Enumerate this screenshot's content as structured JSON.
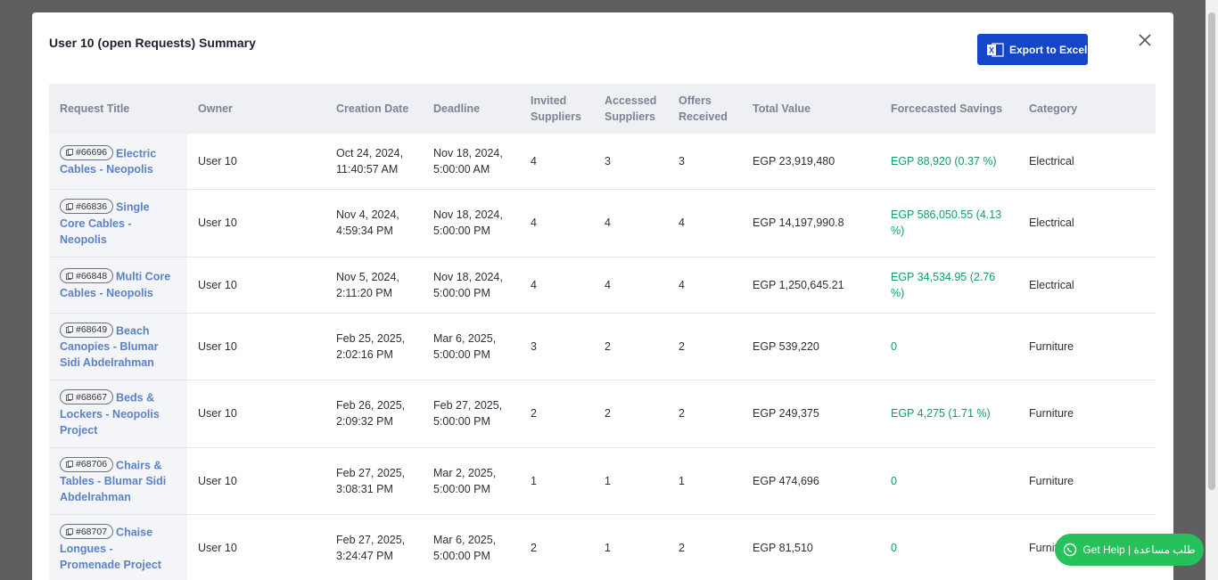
{
  "modal": {
    "title": "User 10 (open Requests) Summary",
    "export_button": "Export to Excel"
  },
  "table": {
    "headers": [
      "Request Title",
      "Owner",
      "Creation Date",
      "Deadline",
      "Invited Suppliers",
      "Accessed Suppliers",
      "Offers Received",
      "Total Value",
      "Forcecasted Savings",
      "Category"
    ],
    "rows": [
      {
        "id": "#66696",
        "title": "Electric Cables - Neopolis",
        "owner": "User 10",
        "created": "Oct 24, 2024, 11:40:57 AM",
        "deadline": "Nov 18, 2024, 5:00:00 AM",
        "invited": 4,
        "accessed": 3,
        "offers": 3,
        "total_value": "EGP 23,919,480",
        "savings": "EGP 88,920 (0.37 %)",
        "category": "Electrical"
      },
      {
        "id": "#66836",
        "title": "Single Core Cables - Neopolis",
        "owner": "User 10",
        "created": "Nov 4, 2024, 4:59:34 PM",
        "deadline": "Nov 18, 2024, 5:00:00 PM",
        "invited": 4,
        "accessed": 4,
        "offers": 4,
        "total_value": "EGP 14,197,990.8",
        "savings": "EGP 586,050.55 (4.13 %)",
        "category": "Electrical"
      },
      {
        "id": "#66848",
        "title": "Multi Core Cables - Neopolis",
        "owner": "User 10",
        "created": "Nov 5, 2024, 2:11:20 PM",
        "deadline": "Nov 18, 2024, 5:00:00 PM",
        "invited": 4,
        "accessed": 4,
        "offers": 4,
        "total_value": "EGP 1,250,645.21",
        "savings": "EGP 34,534.95 (2.76 %)",
        "category": "Electrical"
      },
      {
        "id": "#68649",
        "title": "Beach Canopies - Blumar Sidi Abdelrahman",
        "owner": "User 10",
        "created": "Feb 25, 2025, 2:02:16 PM",
        "deadline": "Mar 6, 2025, 5:00:00 PM",
        "invited": 3,
        "accessed": 2,
        "offers": 2,
        "total_value": "EGP 539,220",
        "savings": "0",
        "category": "Furniture"
      },
      {
        "id": "#68667",
        "title": "Beds & Lockers - Neopolis Project",
        "owner": "User 10",
        "created": "Feb 26, 2025, 2:09:32 PM",
        "deadline": "Feb 27, 2025, 5:00:00 PM",
        "invited": 2,
        "accessed": 2,
        "offers": 2,
        "total_value": "EGP 249,375",
        "savings": "EGP 4,275 (1.71 %)",
        "category": "Furniture"
      },
      {
        "id": "#68706",
        "title": "Chairs & Tables - Blumar Sidi Abdelrahman",
        "owner": "User 10",
        "created": "Feb 27, 2025, 3:08:31 PM",
        "deadline": "Mar 2, 2025, 5:00:00 PM",
        "invited": 1,
        "accessed": 1,
        "offers": 1,
        "total_value": "EGP 474,696",
        "savings": "0",
        "category": "Furniture"
      },
      {
        "id": "#68707",
        "title": "Chaise Longues - Promenade Project",
        "owner": "User 10",
        "created": "Feb 27, 2025, 3:24:47 PM",
        "deadline": "Mar 6, 2025, 5:00:00 PM",
        "invited": 2,
        "accessed": 1,
        "offers": 2,
        "total_value": "EGP 81,510",
        "savings": "0",
        "category": "Furniture"
      }
    ]
  },
  "help_button": "Get Help | طلب مساعدة"
}
